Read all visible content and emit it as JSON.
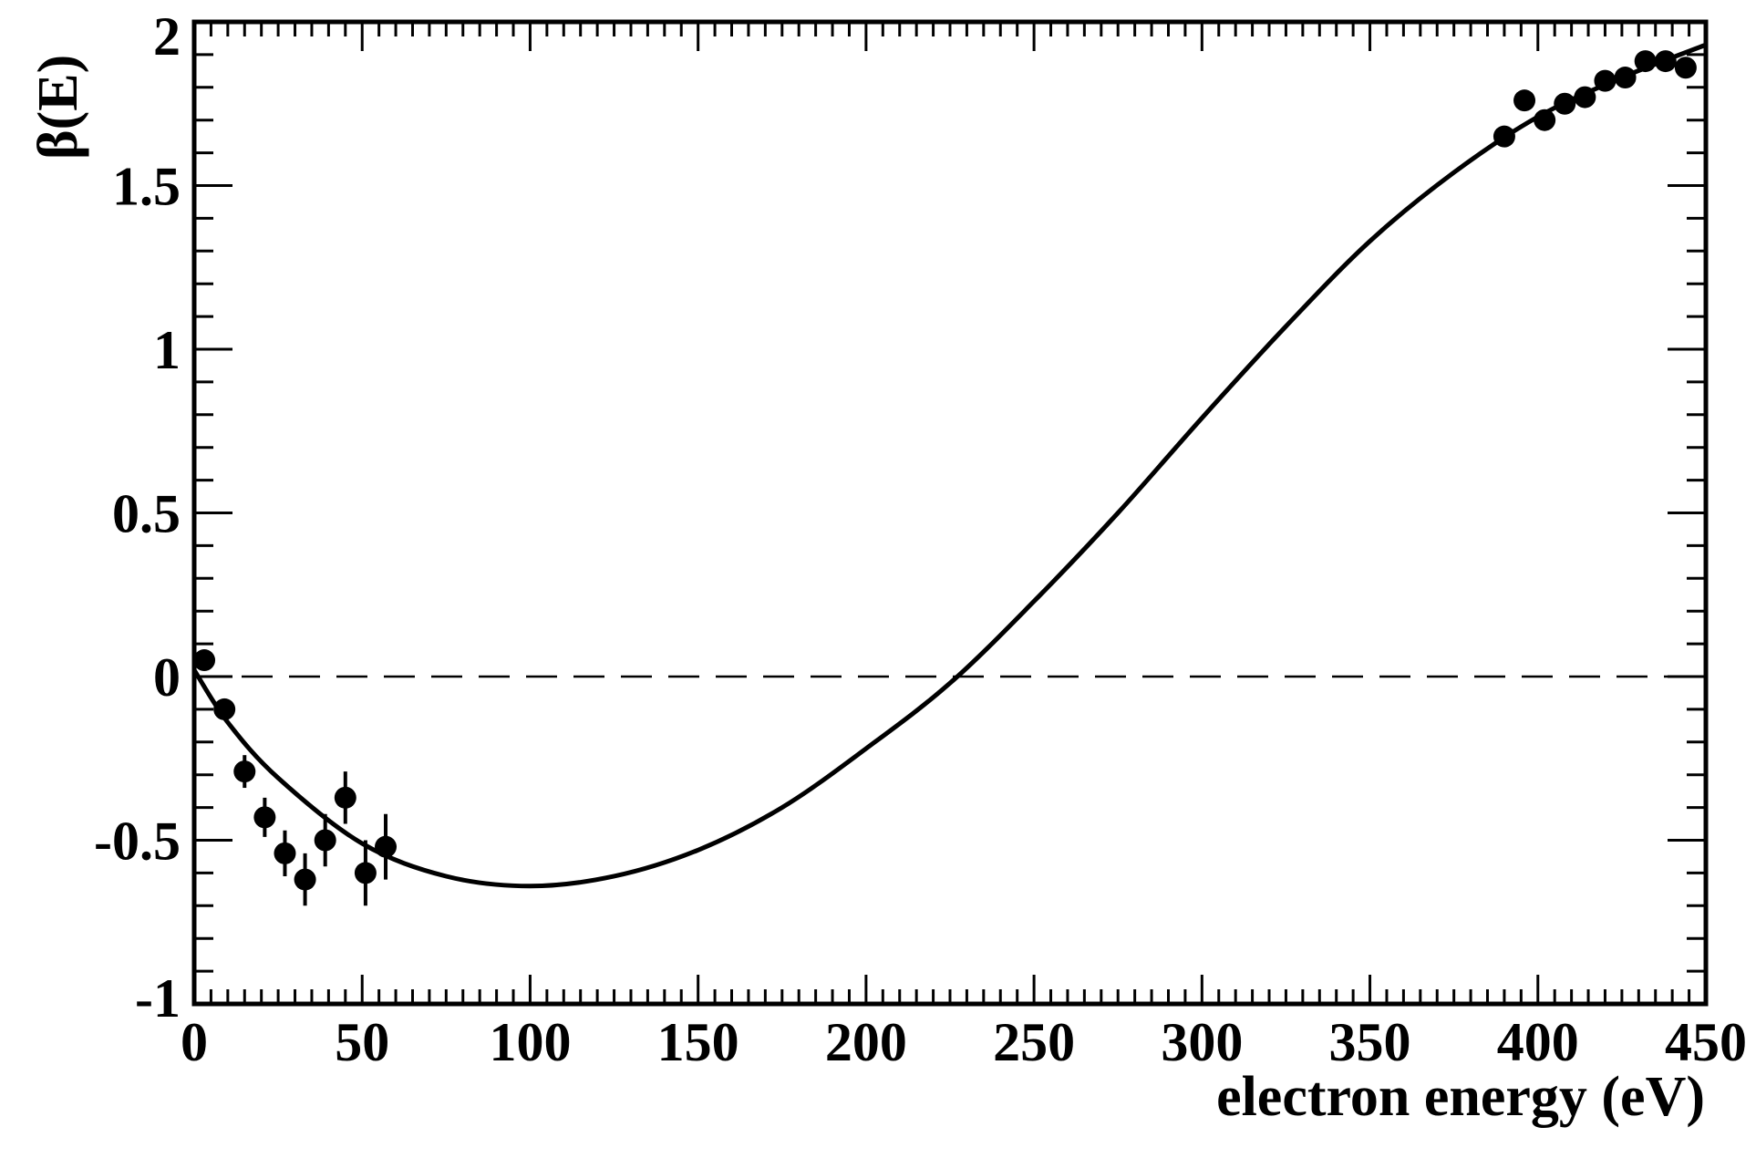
{
  "chart_data": {
    "type": "scatter",
    "xlabel": "electron energy (eV)",
    "ylabel": "β(E)",
    "xlim": [
      0,
      450
    ],
    "ylim": [
      -1,
      2
    ],
    "x_ticks": [
      "0",
      "50",
      "100",
      "150",
      "200",
      "250",
      "300",
      "350",
      "400",
      "450"
    ],
    "x_tick_values": [
      0,
      50,
      100,
      150,
      200,
      250,
      300,
      350,
      400,
      450
    ],
    "y_ticks": [
      "-1",
      "-0.5",
      "0",
      "0.5",
      "1",
      "1.5",
      "2"
    ],
    "y_tick_values": [
      -1,
      -0.5,
      0,
      0.5,
      1,
      1.5,
      2
    ],
    "grid": false,
    "reference_line": {
      "y": 0,
      "style": "dashed"
    },
    "series": [
      {
        "type": "scatter",
        "x": [
          3,
          9,
          15,
          21,
          27,
          33,
          39,
          45,
          51,
          57,
          390,
          396,
          402,
          408,
          414,
          420,
          426,
          432,
          438,
          444
        ],
        "y": [
          0.05,
          -0.1,
          -0.29,
          -0.43,
          -0.54,
          -0.62,
          -0.5,
          -0.37,
          -0.6,
          -0.52,
          1.65,
          1.76,
          1.7,
          1.75,
          1.77,
          1.82,
          1.83,
          1.88,
          1.88,
          1.86
        ],
        "yerr": [
          0.0,
          0.03,
          0.05,
          0.06,
          0.07,
          0.08,
          0.08,
          0.08,
          0.1,
          0.1,
          0.0,
          0.0,
          0.0,
          0.0,
          0.0,
          0.0,
          0.0,
          0.0,
          0.0,
          0.0
        ],
        "color": "#000000"
      },
      {
        "type": "line",
        "x": [
          0,
          10,
          25,
          50,
          75,
          100,
          125,
          150,
          175,
          200,
          225,
          250,
          275,
          300,
          325,
          350,
          375,
          400,
          425,
          450
        ],
        "y": [
          0.02,
          -0.14,
          -0.31,
          -0.51,
          -0.61,
          -0.64,
          -0.61,
          -0.53,
          -0.4,
          -0.22,
          -0.02,
          0.23,
          0.5,
          0.79,
          1.07,
          1.33,
          1.54,
          1.71,
          1.83,
          1.93
        ],
        "color": "#000000"
      }
    ]
  }
}
